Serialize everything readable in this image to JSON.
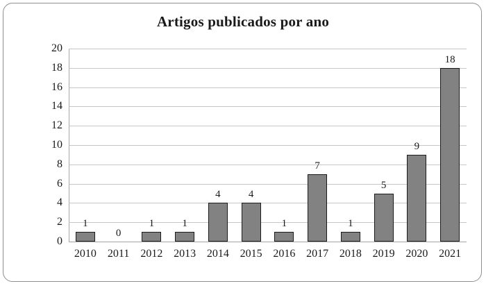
{
  "figure": {
    "border_color": "#8f8f8f",
    "background": "#ffffff"
  },
  "chart_data": {
    "type": "bar",
    "title": "Artigos publicados por ano",
    "categories": [
      "2010",
      "2011",
      "2012",
      "2013",
      "2014",
      "2015",
      "2016",
      "2017",
      "2018",
      "2019",
      "2020",
      "2021"
    ],
    "values": [
      1,
      0,
      1,
      1,
      4,
      4,
      1,
      7,
      1,
      5,
      9,
      18
    ],
    "data_labels": [
      1,
      0,
      1,
      1,
      4,
      4,
      1,
      7,
      1,
      5,
      9,
      18
    ],
    "xlabel": "",
    "ylabel": "",
    "ylim": [
      0,
      20
    ],
    "ytick_step": 2,
    "ytick_labels": [
      "0",
      "2",
      "4",
      "6",
      "8",
      "10",
      "12",
      "14",
      "16",
      "18",
      "20"
    ],
    "grid": true,
    "legend": "none",
    "bar_color": "#828282",
    "bar_border_color": "#1a1a1a",
    "gridline_color": "#c6c6c6",
    "axis_color": "#a6a6a6",
    "text_color": "#1a1a1a"
  }
}
